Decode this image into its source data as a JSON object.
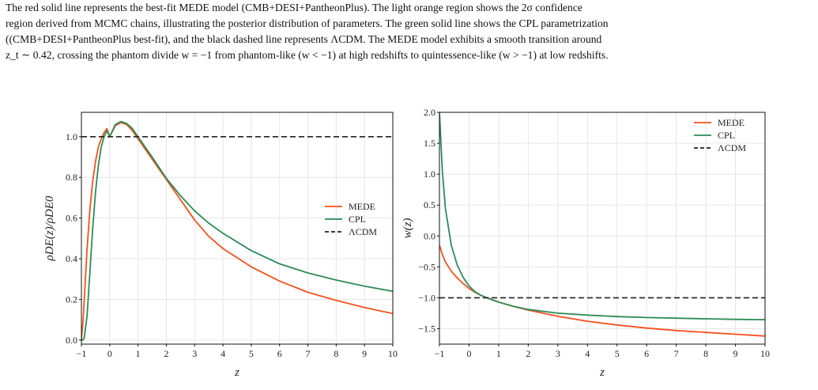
{
  "caption": {
    "lines": [
      "The red solid line represents the best-fit MEDE model (CMB+DESI+PantheonPlus). The light orange region shows the 2σ confidence",
      "region derived from MCMC chains, illustrating the posterior distribution of parameters. The green solid line shows the CPL parametrization",
      "((CMB+DESI+PantheonPlus best-fit), and the black dashed line represents ΛCDM. The MEDE model exhibits a smooth transition around",
      "z_t ∼ 0.42, crossing the phantom divide w = −1 from phantom-like (w < −1) at high redshifts to quintessence-like (w > −1) at low redshifts."
    ]
  },
  "colors": {
    "mede": "#f4511e",
    "cpl": "#2e8b57",
    "lcdm": "#222222",
    "grid": "#e6e6e6"
  },
  "chart_data": [
    {
      "type": "line",
      "xlabel": "z",
      "ylabel": "ρDE(z)/ρDE0",
      "xlim": [
        -1,
        10
      ],
      "ylim": [
        -0.02,
        1.12
      ],
      "xticks": [
        -1,
        0,
        1,
        2,
        3,
        4,
        5,
        6,
        7,
        8,
        9,
        10
      ],
      "yticks": [
        0.0,
        0.2,
        0.4,
        0.6,
        0.8,
        1.0
      ],
      "ytick_labels": [
        "0.0",
        "0.2",
        "0.4",
        "0.6",
        "0.8",
        "1.0"
      ],
      "grid": true,
      "legend_position": "center-right",
      "x": [
        -1,
        -0.95,
        -0.9,
        -0.8,
        -0.7,
        -0.6,
        -0.5,
        -0.4,
        -0.3,
        -0.2,
        -0.1,
        0,
        0.2,
        0.4,
        0.6,
        0.8,
        1.0,
        1.2,
        1.5,
        2,
        2.5,
        3,
        3.5,
        4,
        5,
        6,
        7,
        8,
        9,
        10
      ],
      "series": [
        {
          "name": "MEDE",
          "values": [
            0.0,
            0.08,
            0.2,
            0.45,
            0.64,
            0.78,
            0.88,
            0.95,
            0.99,
            1.02,
            1.04,
            1.0,
            1.055,
            1.07,
            1.06,
            1.03,
            0.99,
            0.95,
            0.89,
            0.79,
            0.69,
            0.59,
            0.51,
            0.45,
            0.36,
            0.29,
            0.235,
            0.195,
            0.16,
            0.13
          ]
        },
        {
          "name": "CPL",
          "values": [
            0.0,
            0.0,
            0.01,
            0.12,
            0.33,
            0.55,
            0.73,
            0.86,
            0.95,
            1.0,
            1.03,
            1.0,
            1.06,
            1.075,
            1.065,
            1.04,
            1.0,
            0.96,
            0.9,
            0.795,
            0.71,
            0.635,
            0.575,
            0.525,
            0.44,
            0.375,
            0.33,
            0.295,
            0.265,
            0.24
          ]
        },
        {
          "name": "ΛCDM",
          "values": [
            1.0,
            1.0,
            1.0,
            1.0,
            1.0,
            1.0,
            1.0,
            1.0,
            1.0,
            1.0,
            1.0,
            1.0,
            1.0,
            1.0,
            1.0,
            1.0,
            1.0,
            1.0,
            1.0,
            1.0,
            1.0,
            1.0,
            1.0,
            1.0,
            1.0,
            1.0,
            1.0,
            1.0,
            1.0,
            1.0
          ]
        }
      ]
    },
    {
      "type": "line",
      "xlabel": "w(z)",
      "ylabel": "w(z)",
      "xlim": [
        -1,
        10
      ],
      "ylim": [
        -1.75,
        2.0
      ],
      "xticks": [
        -1,
        0,
        1,
        2,
        3,
        4,
        5,
        6,
        7,
        8,
        9,
        10
      ],
      "yticks": [
        -1.5,
        -1.0,
        -0.5,
        0.0,
        0.5,
        1.0,
        1.5,
        2.0
      ],
      "ytick_labels": [
        "−1.5",
        "−1.0",
        "−0.5",
        "0.0",
        "0.5",
        "1.0",
        "1.5",
        "2.0"
      ],
      "grid": true,
      "legend_position": "top-right",
      "x": [
        -1,
        -0.9,
        -0.8,
        -0.6,
        -0.4,
        -0.2,
        0,
        0.2,
        0.4,
        0.6,
        1.0,
        1.5,
        2,
        3,
        4,
        5,
        6,
        7,
        8,
        9,
        10
      ],
      "series": [
        {
          "name": "MEDE",
          "values": [
            -0.15,
            -0.3,
            -0.42,
            -0.57,
            -0.68,
            -0.77,
            -0.85,
            -0.91,
            -0.96,
            -1.0,
            -1.07,
            -1.14,
            -1.2,
            -1.3,
            -1.38,
            -1.44,
            -1.49,
            -1.53,
            -1.56,
            -1.59,
            -1.62
          ]
        },
        {
          "name": "CPL",
          "values": [
            2.0,
            1.05,
            0.45,
            -0.15,
            -0.47,
            -0.67,
            -0.81,
            -0.9,
            -0.96,
            -1.0,
            -1.07,
            -1.14,
            -1.19,
            -1.25,
            -1.28,
            -1.305,
            -1.32,
            -1.33,
            -1.34,
            -1.35,
            -1.355
          ]
        },
        {
          "name": "ΛCDM",
          "values": [
            -1.0,
            -1.0,
            -1.0,
            -1.0,
            -1.0,
            -1.0,
            -1.0,
            -1.0,
            -1.0,
            -1.0,
            -1.0,
            -1.0,
            -1.0,
            -1.0,
            -1.0,
            -1.0,
            -1.0,
            -1.0,
            -1.0,
            -1.0,
            -1.0
          ]
        }
      ]
    }
  ]
}
